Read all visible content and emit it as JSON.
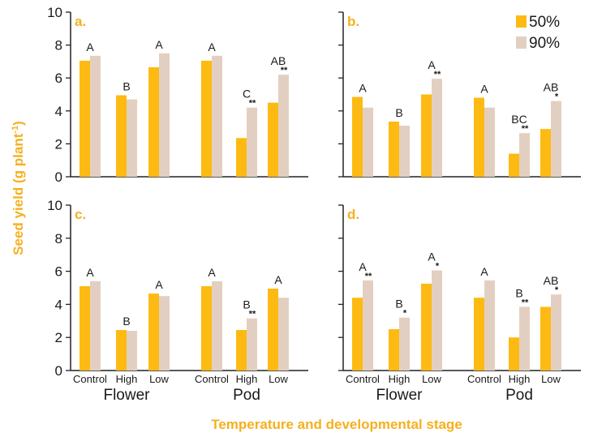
{
  "colors": {
    "s50": "#FDBA12",
    "s90": "#E3CFC1",
    "accent": "#F5B01E",
    "axis": "#222222"
  },
  "ylabel": "Seed yield (g plant",
  "ylabel_sup": "-1",
  "xlabel": "Temperature and developmental stage",
  "chart_data": [
    {
      "type": "bar",
      "panel": "a.",
      "ylim": [
        0,
        10
      ],
      "yticks": [
        "0",
        "2",
        "4",
        "6",
        "8",
        "10"
      ],
      "categories": [
        "Control",
        "High",
        "Low",
        "Control",
        "High",
        "Low"
      ],
      "groups": [
        "Flower",
        "Pod"
      ],
      "legend": [
        "50%",
        "90%"
      ],
      "series": [
        {
          "name": "50%",
          "values": [
            7.05,
            4.95,
            6.65,
            7.05,
            2.35,
            4.5
          ]
        },
        {
          "name": "90%",
          "values": [
            7.35,
            4.7,
            7.5,
            7.35,
            4.2,
            6.2
          ]
        }
      ],
      "letters": [
        "A",
        "B",
        "A",
        "A",
        "C",
        "AB"
      ],
      "stars": [
        "",
        "",
        "",
        "",
        "**",
        "**"
      ]
    },
    {
      "type": "bar",
      "panel": "b.",
      "ylim": [
        0,
        10
      ],
      "categories": [
        "Control",
        "High",
        "Low",
        "Control",
        "High",
        "Low"
      ],
      "groups": [
        "Flower",
        "Pod"
      ],
      "series": [
        {
          "name": "50%",
          "values": [
            4.85,
            3.35,
            5.0,
            4.8,
            1.4,
            2.9
          ]
        },
        {
          "name": "90%",
          "values": [
            4.2,
            3.1,
            5.95,
            4.2,
            2.65,
            4.6
          ]
        }
      ],
      "letters": [
        "A",
        "B",
        "A",
        "A",
        "BC",
        "AB"
      ],
      "stars": [
        "",
        "",
        "**",
        "",
        "**",
        "*"
      ]
    },
    {
      "type": "bar",
      "panel": "c.",
      "ylim": [
        0,
        10
      ],
      "yticks": [
        "0",
        "2",
        "4",
        "6",
        "8",
        "10"
      ],
      "categories": [
        "Control",
        "High",
        "Low",
        "Control",
        "High",
        "Low"
      ],
      "groups": [
        "Flower",
        "Pod"
      ],
      "series": [
        {
          "name": "50%",
          "values": [
            5.1,
            2.45,
            4.65,
            5.1,
            2.45,
            4.95
          ]
        },
        {
          "name": "90%",
          "values": [
            5.4,
            2.4,
            4.5,
            5.4,
            3.15,
            4.4
          ]
        }
      ],
      "letters": [
        "A",
        "B",
        "A",
        "A",
        "B",
        "A"
      ],
      "stars": [
        "",
        "",
        "",
        "",
        "**",
        ""
      ]
    },
    {
      "type": "bar",
      "panel": "d.",
      "ylim": [
        0,
        10
      ],
      "categories": [
        "Control",
        "High",
        "Low",
        "Control",
        "High",
        "Low"
      ],
      "groups": [
        "Flower",
        "Pod"
      ],
      "series": [
        {
          "name": "50%",
          "values": [
            4.4,
            2.5,
            5.25,
            4.4,
            2.0,
            3.85
          ]
        },
        {
          "name": "90%",
          "values": [
            5.45,
            3.2,
            6.05,
            5.45,
            3.85,
            4.6
          ]
        }
      ],
      "letters": [
        "A",
        "B",
        "A",
        "A",
        "B",
        "AB"
      ],
      "stars": [
        "**",
        "*",
        "*",
        "",
        "**",
        "*"
      ]
    }
  ]
}
